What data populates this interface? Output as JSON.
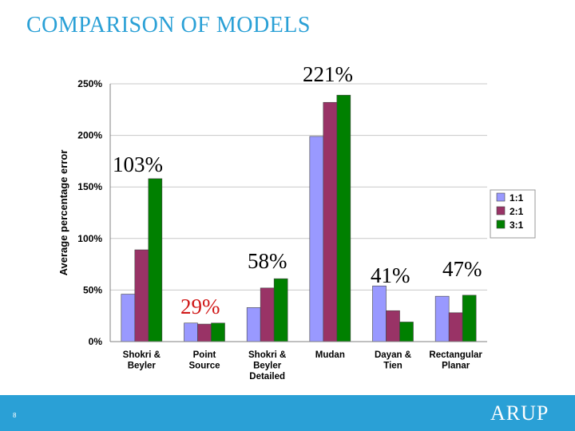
{
  "slide": {
    "title": "COMPARISON OF MODELS",
    "page_number": "8",
    "brand": "ARUP",
    "annotations": [
      "221%",
      "103%",
      "58%",
      "29%",
      "41%",
      "47%"
    ],
    "colors": {
      "title": "#2aa0d6",
      "footer": "#2aa0d6",
      "highlight": "#d01818"
    }
  },
  "chart_data": {
    "type": "bar",
    "title": "",
    "xlabel": "",
    "ylabel": "Average percentage error",
    "ylim": [
      0,
      250
    ],
    "y_ticks": [
      "0%",
      "50%",
      "100%",
      "150%",
      "200%",
      "250%"
    ],
    "grid": true,
    "legend_position": "right",
    "categories": [
      [
        "Shokri &",
        "Beyler"
      ],
      [
        "Point",
        "Source"
      ],
      [
        "Shokri &",
        "Beyler",
        "Detailed"
      ],
      [
        "Mudan"
      ],
      [
        "Dayan &",
        "Tien"
      ],
      [
        "Rectangular",
        "Planar"
      ]
    ],
    "series": [
      {
        "name": "1:1",
        "color": "#9999ff",
        "values": [
          46,
          18,
          33,
          199,
          54,
          44
        ]
      },
      {
        "name": "2:1",
        "color": "#993366",
        "values": [
          89,
          17,
          52,
          232,
          30,
          28
        ]
      },
      {
        "name": "3:1",
        "color": "#008000",
        "values": [
          158,
          18,
          61,
          239,
          19,
          45
        ]
      }
    ]
  }
}
